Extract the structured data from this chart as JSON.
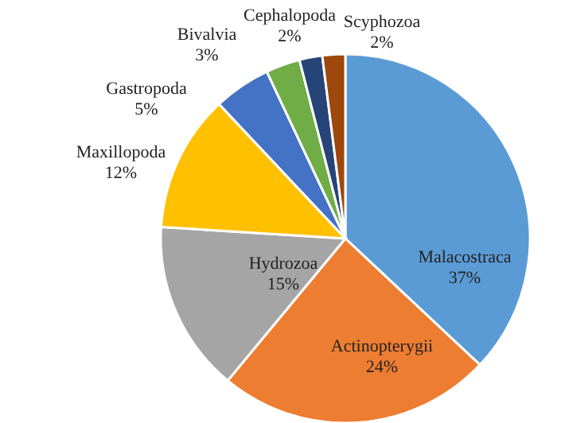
{
  "chart_data": {
    "type": "pie",
    "categories": [
      "Malacostraca",
      "Actinopterygii",
      "Hydrozoa",
      "Maxillopoda",
      "Gastropoda",
      "Bivalvia",
      "Cephalopoda",
      "Scyphozoa"
    ],
    "values": [
      37,
      24,
      15,
      12,
      5,
      3,
      2,
      2
    ],
    "value_labels": [
      "37%",
      "24%",
      "15%",
      "12%",
      "5%",
      "3%",
      "2%",
      "2%"
    ],
    "colors": [
      "#5b9bd5",
      "#ed7d31",
      "#a5a5a5",
      "#ffc000",
      "#4472c4",
      "#70ad47",
      "#264478",
      "#9e480e"
    ]
  }
}
